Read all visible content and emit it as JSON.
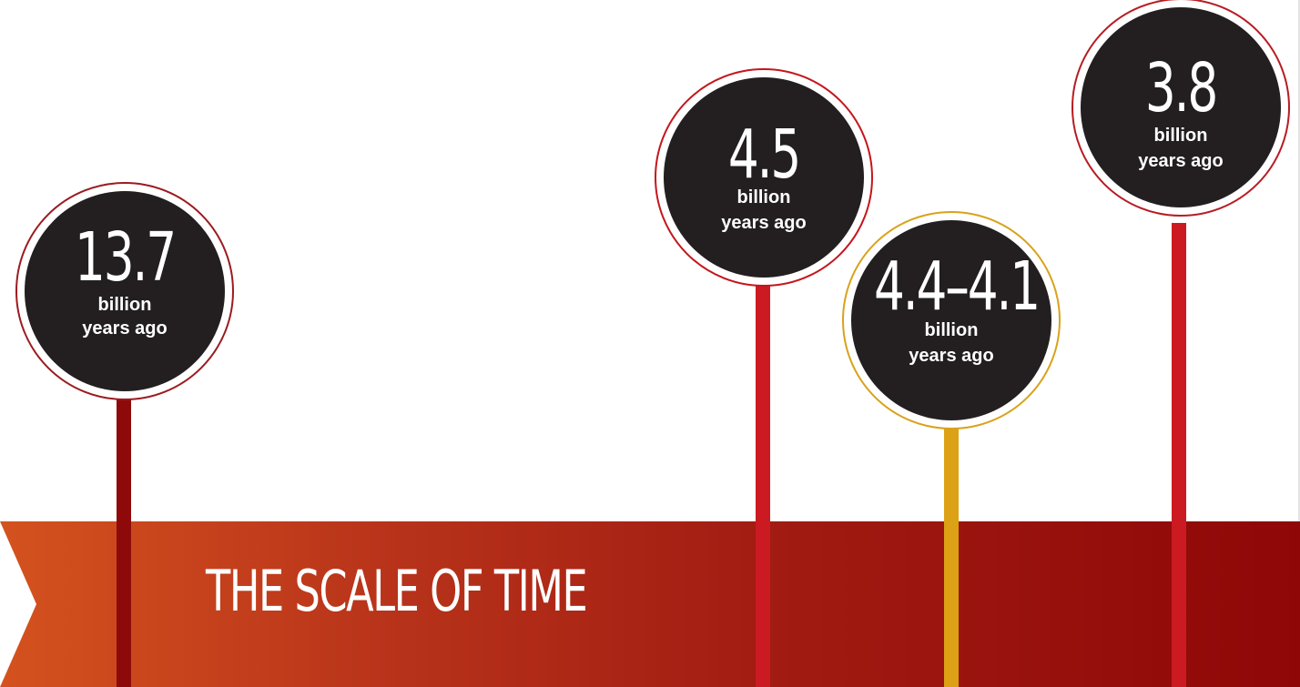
{
  "title": "THE SCALE OF TIME",
  "markers": [
    {
      "value": "13.7",
      "line1": "billion",
      "line2": "years ago",
      "ring_color": "#9b1b20",
      "stem_color": "#8e0a0a"
    },
    {
      "value": "4.5",
      "line1": "billion",
      "line2": "years ago",
      "ring_color": "#c4161c",
      "stem_color": "#cc1a22"
    },
    {
      "value": "4.4–4.1",
      "line1": "billion",
      "line2": "years ago",
      "ring_color": "#d9a21b",
      "stem_color": "#dca115"
    },
    {
      "value": "3.8",
      "line1": "billion",
      "line2": "years ago",
      "ring_color": "#b71c22",
      "stem_color": "#cc1a22"
    }
  ]
}
